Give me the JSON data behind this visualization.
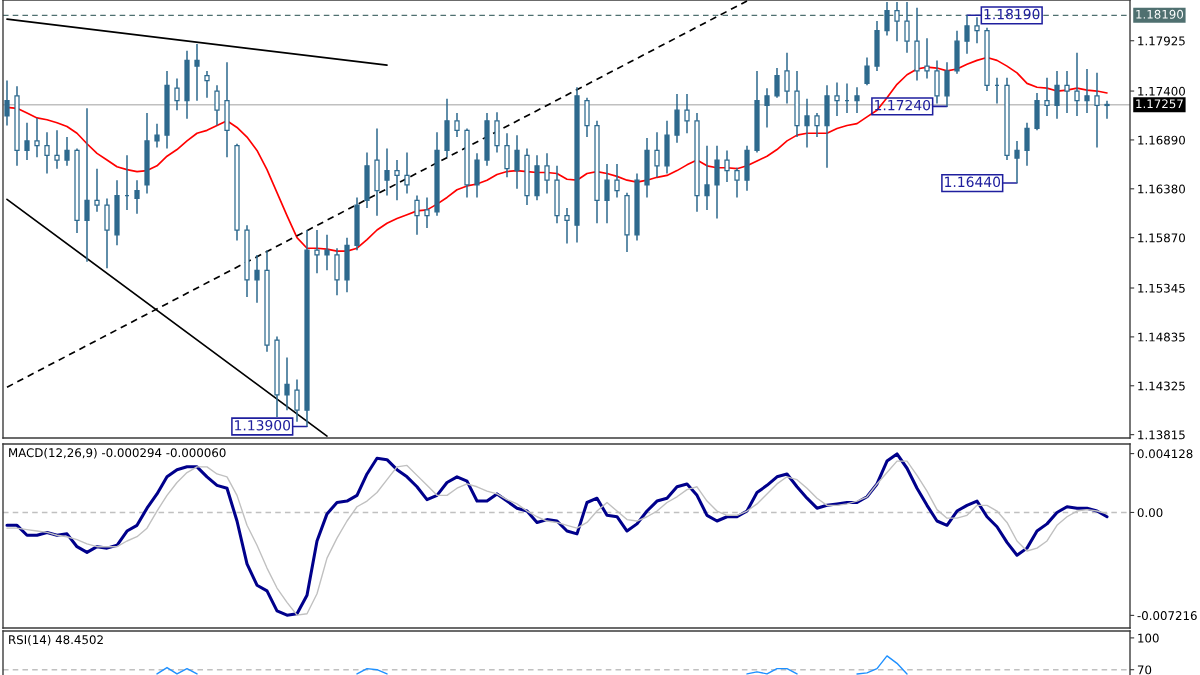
{
  "chart_data": [
    {
      "type": "candlestick",
      "categories": [
        null,
        null,
        null,
        null,
        null,
        null,
        null,
        null,
        null,
        null,
        null,
        null,
        null,
        null,
        null,
        null,
        null,
        null,
        null,
        null,
        null,
        null,
        null,
        null,
        null,
        null,
        null,
        null,
        null,
        null,
        null,
        null,
        null,
        null,
        null,
        null,
        null,
        null,
        null,
        null,
        null,
        null,
        null,
        null,
        null,
        null,
        null,
        null,
        null,
        null,
        null,
        null,
        null,
        null,
        null,
        null,
        null,
        null,
        null,
        null,
        null,
        null,
        null,
        null,
        null,
        null,
        null,
        null,
        null,
        null,
        null,
        null,
        null,
        null,
        null,
        null,
        null,
        null,
        null,
        null,
        null,
        null,
        null,
        null,
        null,
        null,
        null,
        null,
        null,
        null,
        null,
        null,
        null,
        null,
        null,
        null,
        null,
        null,
        null,
        null,
        null,
        null,
        null,
        null,
        null,
        null,
        null,
        null,
        null,
        null,
        null
      ],
      "ohlc": [
        [
          1.1714,
          1.1751,
          1.1704,
          1.173
        ],
        [
          1.1735,
          1.1745,
          1.1662,
          1.1678
        ],
        [
          1.1678,
          1.1707,
          1.1668,
          1.1688
        ],
        [
          1.1688,
          1.1712,
          1.1671,
          1.1683
        ],
        [
          1.1683,
          1.1697,
          1.1654,
          1.1673
        ],
        [
          1.1673,
          1.1699,
          1.1659,
          1.1668
        ],
        [
          1.1668,
          1.1692,
          1.1662,
          1.1678
        ],
        [
          1.1678,
          1.168,
          1.1592,
          1.1605
        ],
        [
          1.1605,
          1.1722,
          1.1562,
          1.1626
        ],
        [
          1.1626,
          1.1659,
          1.1614,
          1.1621
        ],
        [
          1.1621,
          1.1628,
          1.1555,
          1.1595
        ],
        [
          1.159,
          1.1647,
          1.1579,
          1.1631
        ],
        [
          1.1631,
          1.1673,
          1.1616,
          1.1631
        ],
        [
          1.1628,
          1.1647,
          1.1612,
          1.1636
        ],
        [
          1.1642,
          1.1717,
          1.1633,
          1.1688
        ],
        [
          1.1688,
          1.1706,
          1.1681,
          1.1694
        ],
        [
          1.1694,
          1.1761,
          1.168,
          1.1746
        ],
        [
          1.1743,
          1.1753,
          1.172,
          1.173
        ],
        [
          1.173,
          1.1782,
          1.1711,
          1.1772
        ],
        [
          1.1766,
          1.1789,
          1.173,
          1.1772
        ],
        [
          1.1756,
          1.1761,
          1.1733,
          1.1751
        ],
        [
          1.174,
          1.1746,
          1.1704,
          1.172
        ],
        [
          1.173,
          1.177,
          1.1671,
          1.1699
        ],
        [
          1.1683,
          1.1685,
          1.1584,
          1.1595
        ],
        [
          1.1595,
          1.16,
          1.1525,
          1.1543
        ],
        [
          1.1543,
          1.1569,
          1.1519,
          1.1553
        ],
        [
          1.1553,
          1.1574,
          1.1468,
          1.1475
        ],
        [
          1.148,
          1.1484,
          1.14,
          1.1423
        ],
        [
          1.1423,
          1.1462,
          1.1407,
          1.1434
        ],
        [
          1.1428,
          1.1439,
          1.1395,
          1.1407
        ],
        [
          1.1407,
          1.1595,
          1.139,
          1.1574
        ],
        [
          1.1574,
          1.1595,
          1.155,
          1.1569
        ],
        [
          1.1569,
          1.159,
          1.1553,
          1.1574
        ],
        [
          1.1569,
          1.1576,
          1.1527,
          1.1543
        ],
        [
          1.1543,
          1.1587,
          1.153,
          1.1579
        ],
        [
          1.1579,
          1.1629,
          1.1574,
          1.1621
        ],
        [
          1.1626,
          1.1676,
          1.1618,
          1.1662
        ],
        [
          1.1668,
          1.1701,
          1.161,
          1.1636
        ],
        [
          1.1647,
          1.168,
          1.1631,
          1.1657
        ],
        [
          1.1657,
          1.1668,
          1.1626,
          1.1652
        ],
        [
          1.1652,
          1.1676,
          1.1633,
          1.1642
        ],
        [
          1.1626,
          1.1631,
          1.159,
          1.161
        ],
        [
          1.1616,
          1.1629,
          1.1597,
          1.161
        ],
        [
          1.1614,
          1.1697,
          1.161,
          1.1678
        ],
        [
          1.1678,
          1.1732,
          1.1671,
          1.1709
        ],
        [
          1.1709,
          1.1717,
          1.1692,
          1.1699
        ],
        [
          1.1699,
          1.1701,
          1.1629,
          1.1642
        ],
        [
          1.1642,
          1.1675,
          1.1629,
          1.1668
        ],
        [
          1.1668,
          1.1717,
          1.1662,
          1.1709
        ],
        [
          1.1709,
          1.1718,
          1.1676,
          1.1683
        ],
        [
          1.1683,
          1.1696,
          1.165,
          1.1659
        ],
        [
          1.1657,
          1.1694,
          1.1638,
          1.1678
        ],
        [
          1.1673,
          1.168,
          1.1621,
          1.1631
        ],
        [
          1.1631,
          1.1673,
          1.1626,
          1.1662
        ],
        [
          1.1662,
          1.1675,
          1.1633,
          1.1647
        ],
        [
          1.1647,
          1.1662,
          1.1602,
          1.161
        ],
        [
          1.161,
          1.1618,
          1.1581,
          1.1605
        ],
        [
          1.16,
          1.1744,
          1.1582,
          1.1735
        ],
        [
          1.173,
          1.1733,
          1.1692,
          1.1704
        ],
        [
          1.1704,
          1.1709,
          1.1602,
          1.1626
        ],
        [
          1.1626,
          1.1664,
          1.1602,
          1.1647
        ],
        [
          1.1647,
          1.1664,
          1.1629,
          1.1636
        ],
        [
          1.1631,
          1.1634,
          1.1572,
          1.159
        ],
        [
          1.159,
          1.1654,
          1.1584,
          1.1647
        ],
        [
          1.1642,
          1.1691,
          1.1629,
          1.1678
        ],
        [
          1.1678,
          1.1697,
          1.165,
          1.1662
        ],
        [
          1.1662,
          1.1709,
          1.1654,
          1.1694
        ],
        [
          1.1694,
          1.1737,
          1.1686,
          1.172
        ],
        [
          1.172,
          1.1737,
          1.1696,
          1.1709
        ],
        [
          1.1709,
          1.1717,
          1.1614,
          1.1631
        ],
        [
          1.1631,
          1.1683,
          1.1616,
          1.1642
        ],
        [
          1.1642,
          1.1683,
          1.1607,
          1.1668
        ],
        [
          1.1668,
          1.1678,
          1.1645,
          1.1657
        ],
        [
          1.1657,
          1.166,
          1.1629,
          1.1647
        ],
        [
          1.1647,
          1.1683,
          1.1636,
          1.1678
        ],
        [
          1.1678,
          1.1761,
          1.1676,
          1.173
        ],
        [
          1.1725,
          1.1743,
          1.1702,
          1.1735
        ],
        [
          1.1735,
          1.1764,
          1.1733,
          1.1756
        ],
        [
          1.1761,
          1.178,
          1.1727,
          1.174
        ],
        [
          1.174,
          1.1761,
          1.1692,
          1.1704
        ],
        [
          1.1704,
          1.1732,
          1.1681,
          1.1714
        ],
        [
          1.1714,
          1.1717,
          1.1692,
          1.1704
        ],
        [
          1.1704,
          1.1746,
          1.166,
          1.1735
        ],
        [
          1.1735,
          1.1749,
          1.1714,
          1.173
        ],
        [
          1.173,
          1.1748,
          1.1717,
          1.173
        ],
        [
          1.173,
          1.1744,
          1.1717,
          1.1735
        ],
        [
          1.1748,
          1.1775,
          1.1746,
          1.1766
        ],
        [
          1.1766,
          1.1813,
          1.1761,
          1.1803
        ],
        [
          1.1803,
          1.1833,
          1.1798,
          1.1824
        ],
        [
          1.1824,
          1.1833,
          1.1792,
          1.1813
        ],
        [
          1.1813,
          1.1833,
          1.178,
          1.1792
        ],
        [
          1.1792,
          1.1827,
          1.1751,
          1.1761
        ],
        [
          1.1766,
          1.1795,
          1.1753,
          1.1761
        ],
        [
          1.1761,
          1.1772,
          1.1727,
          1.1735
        ],
        [
          1.1735,
          1.177,
          1.1724,
          1.1761
        ],
        [
          1.1761,
          1.1803,
          1.1758,
          1.1792
        ],
        [
          1.1792,
          1.1819,
          1.1779,
          1.1808
        ],
        [
          1.1808,
          1.1817,
          1.179,
          1.1803
        ],
        [
          1.1803,
          1.1806,
          1.174,
          1.1746
        ],
        [
          1.1746,
          1.1754,
          1.1727,
          1.1746
        ],
        [
          1.1746,
          1.1754,
          1.1668,
          1.1673
        ],
        [
          1.167,
          1.1688,
          1.1644,
          1.1678
        ],
        [
          1.1678,
          1.1707,
          1.1662,
          1.1701
        ],
        [
          1.1701,
          1.1738,
          1.1699,
          1.173
        ],
        [
          1.173,
          1.1754,
          1.1714,
          1.1725
        ],
        [
          1.1725,
          1.1761,
          1.1711,
          1.1746
        ],
        [
          1.1746,
          1.1761,
          1.1717,
          1.174
        ],
        [
          1.174,
          1.178,
          1.1714,
          1.173
        ],
        [
          1.173,
          1.1763,
          1.1717,
          1.1735
        ],
        [
          1.1735,
          1.1759,
          1.1681,
          1.1725
        ],
        [
          1.1725,
          1.173,
          1.1711,
          1.1726
        ]
      ],
      "colors": [
        "#2e6a8e",
        "#2e6a8e",
        "#2e6a8e",
        "#2e6a8e",
        "#2e6a8e",
        "#2e6a8e",
        "#2e6a8e",
        "#2e6a8e",
        "#2e6a8e",
        "#2e6a8e",
        "#2e6a8e",
        "#2e6a8e",
        "#2e6a8e",
        "#2e6a8e",
        "#2e6a8e",
        "#2e6a8e",
        "#2e6a8e",
        "#2e6a8e",
        "#2e6a8e",
        "#2e6a8e",
        "#2e6a8e",
        "#2e6a8e",
        "#2e6a8e",
        "#2e6a8e",
        "#2e6a8e",
        "#2e6a8e",
        "#2e6a8e",
        "#2e6a8e",
        "#2e6a8e",
        "#2e6a8e",
        "#2e6a8e",
        "#2e6a8e",
        "#2e6a8e",
        "#2e6a8e",
        "#2e6a8e",
        "#2e6a8e",
        "#2e6a8e",
        "#2e6a8e",
        "#2e6a8e",
        "#2e6a8e",
        "#2e6a8e",
        "#2e6a8e",
        "#2e6a8e",
        "#2e6a8e",
        "#2e6a8e",
        "#2e6a8e",
        "#2e6a8e",
        "#2e6a8e",
        "#2e6a8e",
        "#2e6a8e",
        "#2e6a8e",
        "#2e6a8e",
        "#2e6a8e",
        "#2e6a8e",
        "#2e6a8e",
        "#2e6a8e",
        "#2e6a8e",
        "#2e6a8e",
        "#2e6a8e",
        "#2e6a8e",
        "#2e6a8e",
        "#2e6a8e",
        "#2e6a8e",
        "#2e6a8e",
        "#2e6a8e",
        "#2e6a8e",
        "#2e6a8e",
        "#2e6a8e",
        "#2e6a8e",
        "#2e6a8e",
        "#2e6a8e",
        "#2e6a8e",
        "#2e6a8e",
        "#2e6a8e",
        "#2e6a8e",
        "#2e6a8e",
        "#2e6a8e",
        "#2e6a8e",
        "#2e6a8e",
        "#2e6a8e",
        "#2e6a8e",
        "#2e6a8e",
        "#2e6a8e",
        "#2e6a8e",
        "#2e6a8e",
        "#2e6a8e",
        "#2e6a8e",
        "#2e6a8e",
        "#2e6a8e",
        "#2e6a8e",
        "#2e6a8e",
        "#2e6a8e",
        "#2e6a8e",
        "#2e6a8e",
        "#2e6a8e",
        "#2e6a8e",
        "#2e6a8e",
        "#2e6a8e",
        "#2e6a8e",
        "#2e6a8e",
        "#2e6a8e",
        "#2e6a8e",
        "#2e6a8e",
        "#2e6a8e",
        "#2e6a8e",
        "#2e6a8e",
        "#2e6a8e",
        "#2e6a8e",
        "#2e6a8e",
        "#2e6a8e",
        "#2e6a8e"
      ],
      "series": [
        {
          "type": "line",
          "color": "#ff0000",
          "values": [
            1.1723,
            1.1722,
            1.1717,
            1.1712,
            1.171,
            1.1707,
            1.1703,
            1.1696,
            1.1685,
            1.1675,
            1.1668,
            1.1661,
            1.1658,
            1.1656,
            1.1657,
            1.1662,
            1.1672,
            1.1679,
            1.1688,
            1.1696,
            1.1699,
            1.1704,
            1.1709,
            1.1702,
            1.1692,
            1.1678,
            1.1658,
            1.1634,
            1.161,
            1.1587,
            1.1576,
            1.1576,
            1.1575,
            1.1573,
            1.1573,
            1.1576,
            1.1585,
            1.1595,
            1.1602,
            1.1607,
            1.1611,
            1.1615,
            1.1616,
            1.1622,
            1.1629,
            1.1637,
            1.1641,
            1.1643,
            1.1647,
            1.1653,
            1.1656,
            1.1657,
            1.1656,
            1.1655,
            1.1655,
            1.1654,
            1.1648,
            1.1647,
            1.1654,
            1.1656,
            1.1654,
            1.1651,
            1.1647,
            1.1645,
            1.1647,
            1.165,
            1.1652,
            1.1657,
            1.1663,
            1.1668,
            1.1662,
            1.166,
            1.166,
            1.1659,
            1.1662,
            1.1667,
            1.1672,
            1.1679,
            1.1688,
            1.1694,
            1.1696,
            1.1696,
            1.1696,
            1.1701,
            1.1704,
            1.1706,
            1.1713,
            1.172,
            1.1733,
            1.1747,
            1.1757,
            1.1763,
            1.1765,
            1.1764,
            1.1761,
            1.1763,
            1.1768,
            1.1772,
            1.1775,
            1.1772,
            1.1766,
            1.1759,
            1.1748,
            1.1744,
            1.1743,
            1.174,
            1.1741,
            1.1743,
            1.1741,
            1.174,
            1.1738
          ]
        },
        {
          "type": "line",
          "color": "#000000",
          "values": [
            1.1815,
            null,
            null,
            null,
            null,
            null,
            null,
            null,
            null,
            null,
            null,
            null,
            null,
            null,
            null,
            null,
            null,
            null,
            null,
            null,
            null,
            null,
            null,
            null,
            null,
            null,
            null,
            null,
            null,
            null,
            null,
            null,
            null,
            null,
            null,
            null,
            null,
            null,
            1.1767,
            null,
            null,
            null,
            null,
            null,
            null,
            null,
            null,
            null,
            null,
            null,
            null,
            null,
            null,
            null,
            null,
            null,
            null,
            null,
            null,
            null,
            null,
            null,
            null,
            null,
            null,
            null,
            null,
            null,
            null,
            null,
            null,
            null,
            null,
            null,
            null,
            null,
            null,
            null,
            null,
            null,
            null,
            null,
            null,
            null,
            null,
            null,
            null,
            null,
            null,
            null,
            null,
            null,
            null,
            null,
            null,
            null,
            null,
            null,
            null,
            null,
            null,
            null,
            null,
            null,
            null,
            null,
            null,
            null,
            null,
            null,
            null
          ]
        },
        {
          "type": "line",
          "color": "#000000",
          "values": [
            1.1627,
            null,
            null,
            null,
            null,
            null,
            null,
            null,
            null,
            null,
            null,
            null,
            null,
            null,
            null,
            null,
            null,
            null,
            null,
            null,
            null,
            null,
            null,
            null,
            null,
            null,
            null,
            null,
            null,
            null,
            null,
            null,
            1.138,
            null,
            null,
            null,
            null,
            null,
            null,
            null,
            null,
            null,
            null,
            null,
            null,
            null,
            null,
            null,
            null,
            null,
            null,
            null,
            null,
            null,
            null,
            null,
            null,
            null,
            null,
            null,
            null,
            null,
            null,
            null,
            null,
            null,
            null,
            null,
            null,
            null,
            null,
            null,
            null,
            null,
            null,
            null,
            null,
            null,
            null,
            null,
            null,
            null,
            null,
            null,
            null,
            null,
            null,
            null,
            null,
            null,
            null,
            null,
            null,
            null,
            null,
            null,
            null,
            null,
            null,
            null,
            null,
            null,
            null,
            null,
            null,
            null,
            null,
            null,
            null,
            null,
            null
          ]
        },
        {
          "type": "line",
          "color": "#000000",
          "line_style": "dashed",
          "values": [
            1.1431,
            null,
            null,
            null,
            null,
            null,
            null,
            null,
            null,
            null,
            null,
            null,
            null,
            null,
            null,
            null,
            null,
            null,
            null,
            null,
            null,
            null,
            null,
            null,
            null,
            null,
            null,
            null,
            null,
            null,
            null,
            null,
            null,
            null,
            null,
            null,
            null,
            null,
            null,
            null,
            null,
            null,
            null,
            null,
            null,
            null,
            null,
            null,
            null,
            null,
            null,
            null,
            null,
            null,
            null,
            null,
            null,
            null,
            null,
            null,
            null,
            null,
            null,
            null,
            null,
            null,
            null,
            null,
            null,
            null,
            null,
            null,
            null,
            null,
            1.1834,
            null,
            null,
            null,
            null,
            null,
            null,
            null,
            null,
            null,
            null,
            null,
            null,
            null,
            null,
            null,
            null,
            null,
            null,
            null,
            null,
            null,
            null,
            null,
            null,
            null,
            null,
            null,
            null,
            null,
            null,
            null,
            null,
            null,
            null,
            null,
            null
          ]
        }
      ],
      "ylim": [
        1.1378,
        1.1835
      ],
      "yticks": [
        1.17925,
        {
          "value": 1.174,
          "label": "1.17400"
        },
        {
          "value": 1.1689,
          "label": "1.16890"
        },
        {
          "value": 1.1638,
          "label": "1.16380"
        },
        {
          "value": 1.1587,
          "label": "1.15870"
        },
        1.15345,
        1.14835,
        1.14325,
        1.13815
      ],
      "ref_lines": [
        {
          "axis": "y",
          "value": 1.1819,
          "label": "1.18190",
          "color": "#4f7070",
          "line_style": "dashed"
        },
        {
          "axis": "y",
          "value": 1.17257,
          "label": "1.17257",
          "color": "#c0c0c0",
          "line_style": "solid"
        }
      ],
      "annotations": [
        {
          "text": "1.18190",
          "y": 1.1819
        },
        {
          "text": "1.17240",
          "y": 1.1724
        },
        "1.16440",
        "1.13900"
      ],
      "tick_labels": "y"
    },
    {
      "type": "line",
      "title": "MACD(12,26,9) -0.000294 -0.000060",
      "categories": [
        null,
        null,
        null,
        null,
        null,
        null,
        null,
        null,
        null,
        null,
        null,
        null,
        null,
        null,
        null,
        null,
        null,
        null,
        null,
        null,
        null,
        null,
        null,
        null,
        null,
        null,
        null,
        null,
        null,
        null,
        null,
        null,
        null,
        null,
        null,
        null,
        null,
        null,
        null,
        null,
        null,
        null,
        null,
        null,
        null,
        null,
        null,
        null,
        null,
        null,
        null,
        null,
        null,
        null,
        null,
        null,
        null,
        null,
        null,
        null,
        null,
        null,
        null,
        null,
        null,
        null,
        null,
        null,
        null,
        null,
        null,
        null,
        null,
        null,
        null,
        null,
        null,
        null,
        null,
        null,
        null,
        null,
        null,
        null,
        null,
        null,
        null,
        null,
        null,
        null,
        null,
        null,
        null,
        null,
        null,
        null,
        null,
        null,
        null,
        null,
        null,
        null,
        null,
        null,
        null,
        null,
        null,
        null,
        null,
        null,
        null
      ],
      "series": [
        {
          "color": "#00008b",
          "values": [
            -0.0009,
            -0.0009,
            -0.0016,
            -0.0016,
            -0.0014,
            -0.0016,
            -0.0015,
            -0.0024,
            -0.0028,
            -0.0024,
            -0.0025,
            -0.0023,
            -0.0013,
            -0.0009,
            0.0003,
            0.0013,
            0.0025,
            0.003,
            0.0032,
            0.0032,
            0.0025,
            0.0019,
            0.0017,
            -0.0006,
            -0.0036,
            -0.0051,
            -0.0055,
            -0.0069,
            -0.0072,
            -0.0071,
            -0.0058,
            -0.002,
            -0.0001,
            0.0007,
            0.0008,
            0.0012,
            0.0027,
            0.0038,
            0.0037,
            0.003,
            0.0025,
            0.0018,
            0.0009,
            0.0012,
            0.0021,
            0.0025,
            0.0022,
            0.0008,
            0.0008,
            0.0013,
            0.0008,
            0.0003,
            0.0001,
            -0.0007,
            -0.0005,
            -0.0006,
            -0.0013,
            -0.0015,
            0.0007,
            0.001,
            -0.0002,
            -0.0003,
            -0.0013,
            -0.0008,
            0.0001,
            0.0008,
            0.001,
            0.0018,
            0.002,
            0.0012,
            -0.0002,
            -0.0006,
            -0.0003,
            -0.0003,
            0.0001,
            0.0014,
            0.0019,
            0.0025,
            0.0027,
            0.0018,
            0.001,
            0.0003,
            0.0005,
            0.0006,
            0.0007,
            0.0007,
            0.0011,
            0.002,
            0.0036,
            0.0041,
            0.0031,
            0.0017,
            0.0005,
            -0.0006,
            -0.0009,
            0.0001,
            0.0005,
            0.0008,
            -0.0003,
            -0.001,
            -0.0021,
            -0.003,
            -0.0025,
            -0.0013,
            -0.0008,
            0,
            0.0004,
            0.0003,
            0.0003,
            0.0001,
            -0.0003
          ]
        },
        {
          "color": "#c0c0c0",
          "values": [
            -0.0011,
            -0.0011,
            -0.0012,
            -0.0013,
            -0.0014,
            -0.0016,
            -0.0017,
            -0.0019,
            -0.0022,
            -0.0024,
            -0.0024,
            -0.0024,
            -0.002,
            -0.0017,
            -0.0011,
            0.0001,
            0.0012,
            0.0021,
            0.0028,
            0.0032,
            0.0032,
            0.0027,
            0.0025,
            0.0012,
            -0.0009,
            -0.0023,
            -0.0039,
            -0.0053,
            -0.0063,
            -0.0072,
            -0.0071,
            -0.0057,
            -0.0032,
            -0.0018,
            -0.0006,
            0.0004,
            0.0008,
            0.0014,
            0.0023,
            0.0032,
            0.0033,
            0.0026,
            0.0019,
            0.0012,
            0.0012,
            0.0017,
            0.002,
            0.0018,
            0.0015,
            0.0013,
            0.0009,
            0.0006,
            0.0001,
            -0.0003,
            -0.0006,
            -0.0007,
            -0.0009,
            -0.0011,
            -0.0007,
            0.0001,
            0.0007,
            0.0001,
            -0.0005,
            -0.0006,
            -0.0003,
            0.0001,
            0.0007,
            0.0011,
            0.0016,
            0.0018,
            0.0008,
            0.0001,
            -0.0002,
            -0.0002,
            0.0001,
            0.0006,
            0.0013,
            0.002,
            0.0025,
            0.0023,
            0.0017,
            0.001,
            0.0005,
            0.0005,
            0.0006,
            0.0008,
            0.0011,
            0.002,
            0.0028,
            0.0036,
            0.0036,
            0.0026,
            0.0015,
            0.0002,
            -0.0004,
            -0.0004,
            -0.0002,
            0.0005,
            0.0005,
            0.0001,
            -0.0007,
            -0.002,
            -0.0027,
            -0.0025,
            -0.002,
            -0.0009,
            -0.0003,
            0.0001,
            0.0002,
            0.0001,
            -0.0001
          ]
        }
      ],
      "ylim": [
        -0.0081,
        0.0048
      ],
      "yticks": [
        0.004128,
        {
          "value": 0,
          "label": "0.00"
        },
        -0.007216
      ],
      "ref_lines": [
        {
          "axis": "y",
          "value": 0,
          "color": "#c0c0c0",
          "line_style": "dashed"
        }
      ],
      "tick_labels": "y"
    },
    {
      "type": "line",
      "title": "RSI(14) 48.4502",
      "categories": [
        null,
        null,
        null,
        null,
        null,
        null,
        null,
        null,
        null,
        null,
        null,
        null,
        null,
        null,
        null,
        null,
        null,
        null,
        null,
        null,
        null,
        null,
        null,
        null,
        null,
        null,
        null,
        null,
        null,
        null,
        null,
        null,
        null,
        null,
        null,
        null,
        null,
        null,
        null,
        null,
        null,
        null,
        null,
        null,
        null,
        null,
        null,
        null,
        null,
        null,
        null,
        null,
        null,
        null,
        null,
        null,
        null,
        null,
        null,
        null,
        null,
        null,
        null,
        null,
        null,
        null,
        null,
        null,
        null,
        null,
        null,
        null,
        null,
        null,
        null,
        null,
        null,
        null,
        null,
        null,
        null,
        null,
        null,
        null,
        null,
        null,
        null,
        null,
        null,
        null,
        null,
        null,
        null,
        null,
        null,
        null,
        null,
        null,
        null,
        null,
        null,
        null,
        null,
        null,
        null,
        null,
        null,
        null,
        null,
        null,
        null
      ],
      "series": [
        {
          "color": "#1e90ff",
          "values": [
            null,
            null,
            null,
            null,
            null,
            null,
            null,
            null,
            null,
            null,
            null,
            null,
            null,
            null,
            null,
            66,
            72,
            66,
            71,
            66,
            null,
            null,
            null,
            null,
            null,
            null,
            null,
            null,
            null,
            null,
            null,
            null,
            null,
            null,
            null,
            66,
            71,
            70,
            66,
            null,
            null,
            null,
            null,
            null,
            null,
            null,
            null,
            null,
            null,
            null,
            null,
            null,
            null,
            null,
            null,
            null,
            null,
            null,
            null,
            null,
            null,
            null,
            null,
            null,
            null,
            null,
            null,
            null,
            null,
            null,
            null,
            null,
            null,
            null,
            66,
            68,
            66,
            71,
            71,
            66,
            null,
            null,
            null,
            null,
            null,
            66,
            67,
            71,
            83,
            76,
            66,
            null,
            null,
            null,
            null,
            null,
            null,
            null,
            null,
            null,
            null,
            null,
            null,
            null,
            null,
            null,
            null,
            null,
            null,
            null,
            null
          ]
        }
      ],
      "ylim": [
        65,
        106.5
      ],
      "yticks": [
        100,
        70
      ],
      "ref_lines": [
        {
          "axis": "y",
          "value": 70,
          "color": "#c0c0c0",
          "line_style": "dashed"
        }
      ],
      "tick_labels": "y"
    }
  ]
}
